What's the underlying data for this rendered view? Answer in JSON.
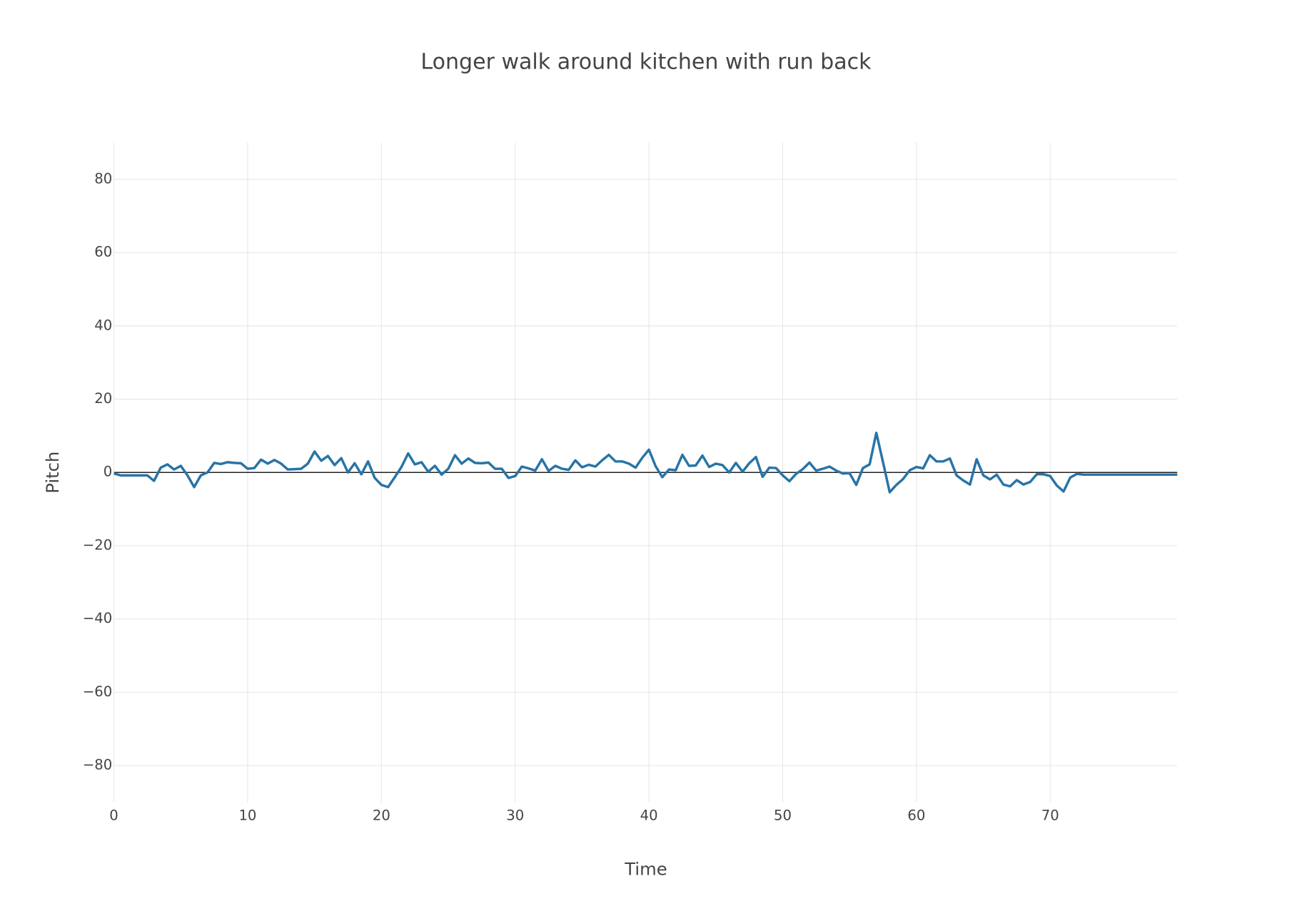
{
  "chart_data": {
    "type": "line",
    "title": "Longer walk around kitchen with run back",
    "x_label": "Time",
    "y_label": "Pitch",
    "x": [
      0,
      0.5,
      1,
      1.5,
      2,
      2.5,
      3,
      3.5,
      4,
      4.5,
      5,
      5.5,
      6,
      6.5,
      7,
      7.5,
      8,
      8.5,
      9,
      9.5,
      10,
      10.5,
      11,
      11.5,
      12,
      12.5,
      13,
      13.5,
      14,
      14.5,
      15,
      15.5,
      16,
      16.5,
      17,
      17.5,
      18,
      18.5,
      19,
      19.5,
      20,
      20.5,
      21,
      21.5,
      22,
      22.5,
      23,
      23.5,
      24,
      24.5,
      25,
      25.5,
      26,
      26.5,
      27,
      27.5,
      28,
      28.5,
      29,
      29.5,
      30,
      30.5,
      31,
      31.5,
      32,
      32.5,
      33,
      33.5,
      34,
      34.5,
      35,
      35.5,
      36,
      36.5,
      37,
      37.5,
      38,
      38.5,
      39,
      39.5,
      40,
      40.5,
      41,
      41.5,
      42,
      42.5,
      43,
      43.5,
      44,
      44.5,
      45,
      45.5,
      46,
      46.5,
      47,
      47.5,
      48,
      48.5,
      49,
      49.5,
      50,
      50.5,
      51,
      51.5,
      52,
      52.5,
      53,
      53.5,
      54,
      54.5,
      55,
      55.5,
      56,
      56.5,
      57,
      57.5,
      58,
      58.5,
      59,
      59.5,
      60,
      60.5,
      61,
      61.5,
      62,
      62.5,
      63,
      63.5,
      64,
      64.5,
      65,
      65.5,
      66,
      66.5,
      67,
      67.5,
      68,
      68.5,
      69,
      69.5,
      70,
      70.5,
      71,
      71.5,
      72,
      72.5,
      73,
      73.5,
      74,
      74.5,
      75,
      75.5,
      76,
      76.5,
      77,
      77.5,
      78,
      78.5,
      79,
      79.5
    ],
    "series": [
      {
        "name": "Pitch",
        "color": "#2874a6",
        "values": [
          -0.3,
          -0.8,
          -0.8,
          -0.8,
          -0.8,
          -0.8,
          -2.3,
          1.3,
          2.2,
          0.8,
          1.8,
          -0.8,
          -4,
          -0.8,
          0,
          2.6,
          2.3,
          2.8,
          2.6,
          2.5,
          1,
          1.2,
          3.5,
          2.4,
          3.4,
          2.4,
          0.8,
          0.9,
          1,
          2.4,
          5.7,
          3.2,
          4.5,
          2,
          3.9,
          0,
          2.5,
          -0.5,
          3,
          -1.5,
          -3.4,
          -4,
          -1.3,
          1.5,
          5.2,
          2.2,
          2.8,
          0.2,
          1.8,
          -0.6,
          1,
          4.7,
          2.4,
          3.8,
          2.6,
          2.5,
          2.7,
          1,
          1,
          -1.5,
          -1,
          1.6,
          1.1,
          0.5,
          3.6,
          0.4,
          1.8,
          1,
          0.7,
          3.3,
          1.4,
          2.1,
          1.6,
          3.3,
          4.8,
          3,
          3,
          2.4,
          1.3,
          4,
          6.2,
          1.7,
          -1.3,
          0.8,
          0.6,
          4.8,
          1.8,
          1.9,
          4.6,
          1.5,
          2.4,
          2,
          0,
          2.6,
          0.2,
          2.5,
          4.2,
          -1.2,
          1.3,
          1.2,
          -0.8,
          -2.4,
          -0.4,
          0.9,
          2.7,
          0.5,
          1,
          1.6,
          0.5,
          -0.3,
          -0.2,
          -3.4,
          1.2,
          2.2,
          10.8,
          2.8,
          -5.4,
          -3.4,
          -1.8,
          0.6,
          1.5,
          1.1,
          4.7,
          3,
          3,
          3.8,
          -0.8,
          -2.2,
          -3.3,
          3.6,
          -0.8,
          -1.9,
          -0.6,
          -3.3,
          -3.8,
          -2.1,
          -3.3,
          -2.6,
          -0.5,
          -0.5,
          -1,
          -3.6,
          -5.2,
          -1.4,
          -0.4,
          -0.6,
          -0.6,
          -0.6,
          -0.6,
          -0.6,
          -0.6,
          -0.6,
          -0.6,
          -0.6,
          -0.6,
          -0.6,
          -0.6,
          -0.6,
          -0.6,
          -0.6
        ]
      }
    ],
    "xlim": [
      0,
      79.5
    ],
    "xticks": [
      0,
      10,
      20,
      30,
      40,
      50,
      60,
      70
    ],
    "ylim": [
      -90,
      90
    ],
    "yticks": [
      {
        "value": -80,
        "label": "−80"
      },
      {
        "value": -60,
        "label": "−60"
      },
      {
        "value": -40,
        "label": "−40"
      },
      {
        "value": -20,
        "label": "−20"
      },
      0,
      20,
      40,
      60,
      80
    ],
    "grid": true,
    "zeroline_color": "#222222"
  }
}
